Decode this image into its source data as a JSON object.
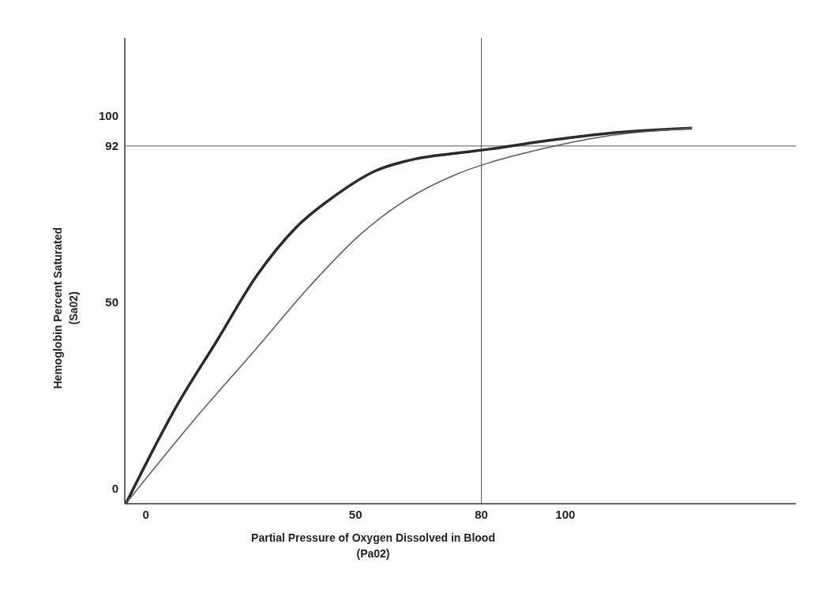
{
  "chart_data": {
    "type": "line",
    "xlabel": "Partial Pressure of Oxygen Dissolved in Blood\n(Pa02)",
    "ylabel": "Hemoglobin Percent Saturated\n(Sa02)",
    "xlim": [
      -5,
      155
    ],
    "ylim": [
      -4,
      121
    ],
    "xticks": [
      0,
      50,
      80,
      100
    ],
    "yticks": [
      0,
      50,
      92,
      100
    ],
    "marker": "none",
    "line_style": "solid",
    "series": [
      {
        "color": "#2a2a2a",
        "x": [
          -4.7,
          7.5,
          17,
          26.4,
          35.8,
          45.3,
          54.7,
          64.2,
          73.6,
          81.5,
          96.2,
          111.3,
          130.2
        ],
        "values": [
          -3.9,
          22.5,
          39.8,
          57.1,
          70.1,
          78.8,
          85.3,
          88.5,
          90,
          91.1,
          93.5,
          95.5,
          96.8
        ]
      },
      {
        "color": "#5a5a5a",
        "x": [
          -4.7,
          11.3,
          26.4,
          39.6,
          50.9,
          62.3,
          73.6,
          81.5,
          92.5,
          105.7,
          130.2
        ],
        "values": [
          -3.9,
          18.2,
          37.7,
          55,
          68,
          77.7,
          84.2,
          87.4,
          90.7,
          93.9,
          96.8
        ]
      }
    ],
    "ref_lines": [
      {
        "axis": "x",
        "value": 80,
        "color": "#555555"
      },
      {
        "axis": "y",
        "value": 92,
        "color": "#555555"
      }
    ]
  }
}
